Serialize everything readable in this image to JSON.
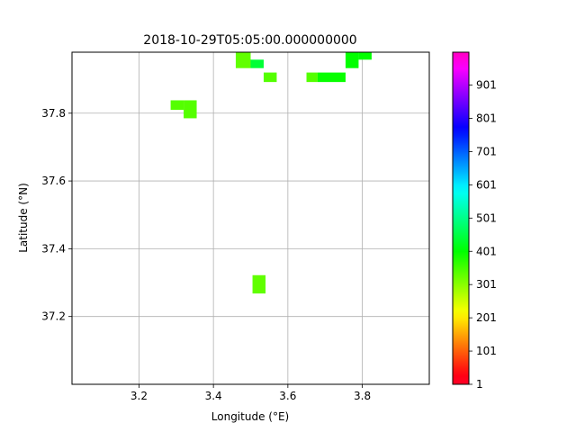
{
  "chart_data": {
    "type": "heatmap",
    "title": "2018-10-29T05:05:00.000000000",
    "xlabel": "Longitude (°E)",
    "ylabel": "Latitude (°N)",
    "xlim": [
      3.02,
      3.98
    ],
    "ylim": [
      37.0,
      37.98
    ],
    "x_ticks": [
      3.2,
      3.4,
      3.6,
      3.8
    ],
    "x_tick_labels": [
      "3.2",
      "3.4",
      "3.6",
      "3.8"
    ],
    "y_ticks": [
      37.2,
      37.4,
      37.6,
      37.8
    ],
    "y_tick_labels": [
      "37.2",
      "37.4",
      "37.6",
      "37.8"
    ],
    "grid": true,
    "colormap": "gist_rainbow",
    "colorbar": {
      "range": [
        1,
        1000
      ],
      "ticks": [
        1,
        101,
        201,
        301,
        401,
        501,
        601,
        701,
        801,
        901
      ],
      "tick_labels": [
        "1",
        "101",
        "201",
        "301",
        "401",
        "501",
        "601",
        "701",
        "801",
        "901"
      ]
    },
    "cells": [
      {
        "lon0": 3.46,
        "lon1": 3.5,
        "lat0": 37.933,
        "lat1": 37.98,
        "value": 330
      },
      {
        "lon0": 3.5,
        "lon1": 3.535,
        "lat0": 37.933,
        "lat1": 37.958,
        "value": 440
      },
      {
        "lon0": 3.535,
        "lon1": 3.57,
        "lat0": 37.892,
        "lat1": 37.92,
        "value": 340
      },
      {
        "lon0": 3.285,
        "lon1": 3.32,
        "lat0": 37.81,
        "lat1": 37.838,
        "value": 340
      },
      {
        "lon0": 3.32,
        "lon1": 3.355,
        "lat0": 37.785,
        "lat1": 37.838,
        "value": 340
      },
      {
        "lon0": 3.65,
        "lon1": 3.68,
        "lat0": 37.892,
        "lat1": 37.92,
        "value": 340
      },
      {
        "lon0": 3.68,
        "lon1": 3.755,
        "lat0": 37.892,
        "lat1": 37.92,
        "value": 395
      },
      {
        "lon0": 3.755,
        "lon1": 3.79,
        "lat0": 37.933,
        "lat1": 37.98,
        "value": 400
      },
      {
        "lon0": 3.79,
        "lon1": 3.825,
        "lat0": 37.958,
        "lat1": 37.98,
        "value": 400
      },
      {
        "lon0": 3.505,
        "lon1": 3.54,
        "lat0": 37.268,
        "lat1": 37.322,
        "value": 330
      }
    ]
  }
}
